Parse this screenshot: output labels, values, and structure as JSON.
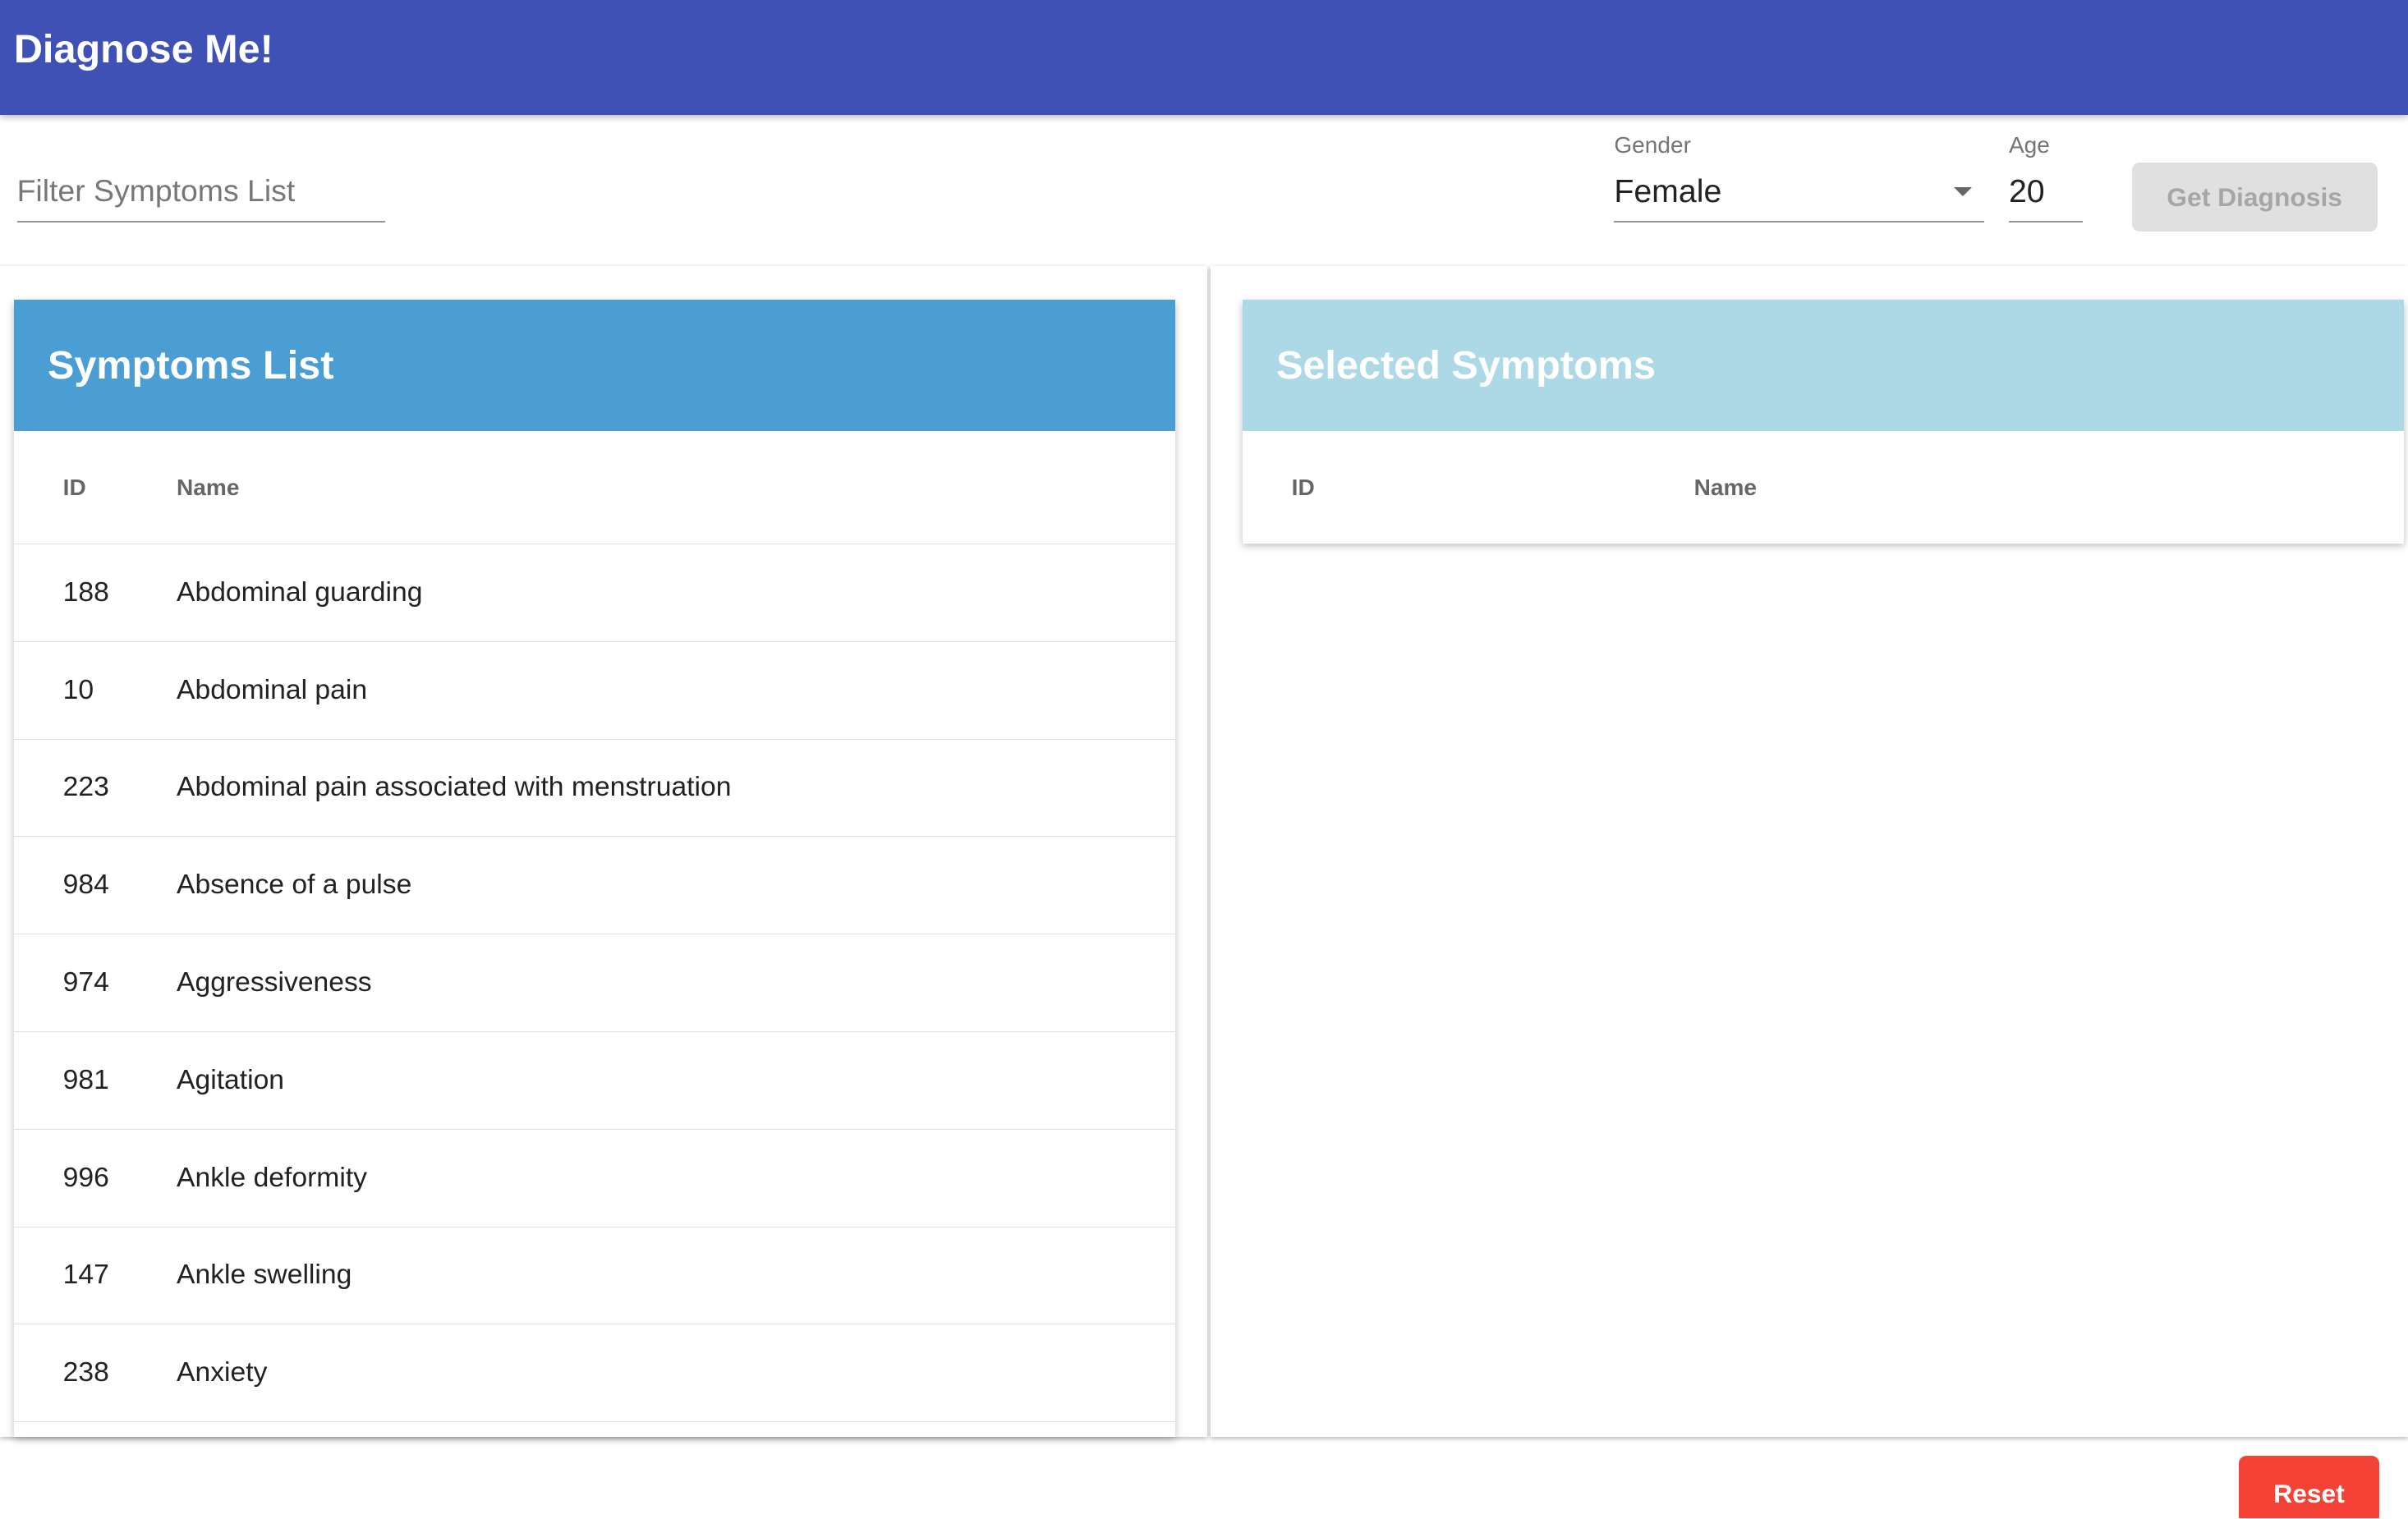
{
  "app": {
    "title": "Diagnose Me!"
  },
  "filter": {
    "placeholder": "Filter Symptoms List",
    "value": ""
  },
  "gender": {
    "label": "Gender",
    "value": "Female"
  },
  "age": {
    "label": "Age",
    "value": "20"
  },
  "buttons": {
    "get_diagnosis": "Get Diagnosis",
    "reset": "Reset"
  },
  "colors": {
    "appbar": "#3f51b5",
    "symptoms_header": "#4b9ed4",
    "selected_header": "#add8e6",
    "reset": "#f44336"
  },
  "symptoms_list": {
    "title": "Symptoms List",
    "columns": [
      "ID",
      "Name"
    ],
    "rows": [
      {
        "id": "188",
        "name": "Abdominal guarding"
      },
      {
        "id": "10",
        "name": "Abdominal pain"
      },
      {
        "id": "223",
        "name": "Abdominal pain associated with menstruation"
      },
      {
        "id": "984",
        "name": "Absence of a pulse"
      },
      {
        "id": "974",
        "name": "Aggressiveness"
      },
      {
        "id": "981",
        "name": "Agitation"
      },
      {
        "id": "996",
        "name": "Ankle deformity"
      },
      {
        "id": "147",
        "name": "Ankle swelling"
      },
      {
        "id": "238",
        "name": "Anxiety"
      }
    ]
  },
  "selected_symptoms": {
    "title": "Selected Symptoms",
    "columns": [
      "ID",
      "Name"
    ],
    "rows": []
  }
}
